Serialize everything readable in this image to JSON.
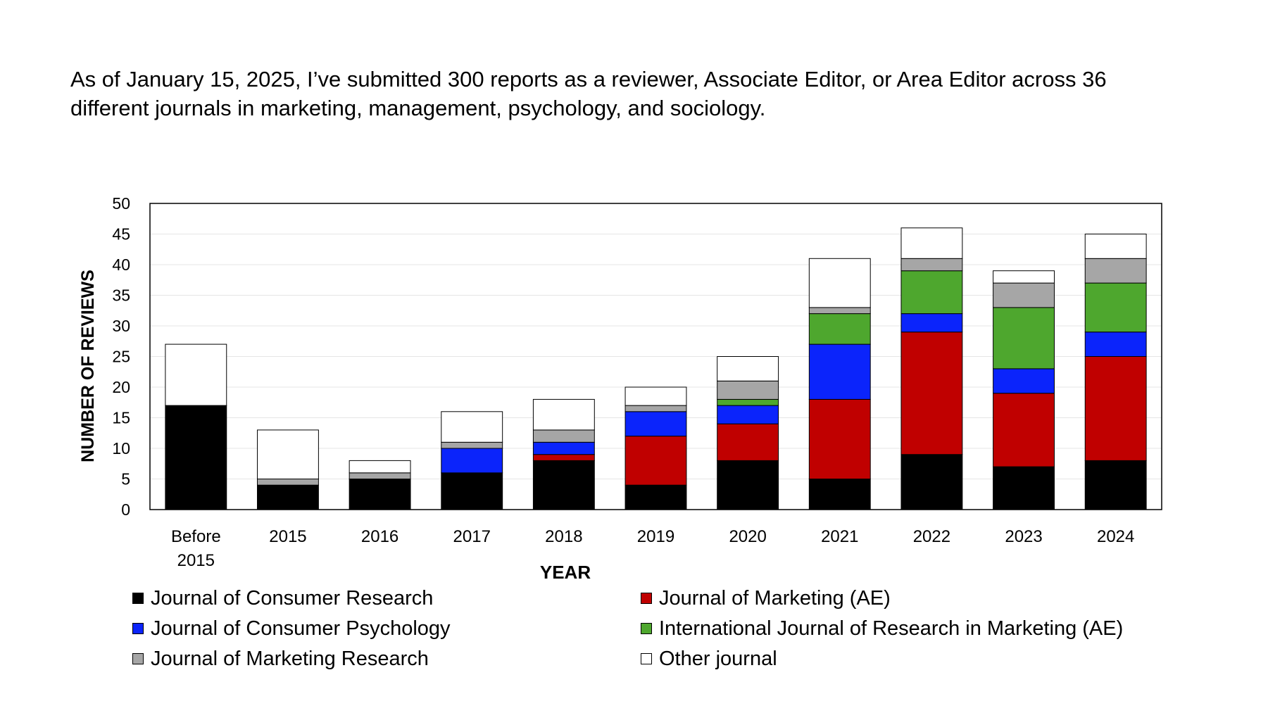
{
  "intro_text": "As of January 15, 2025, I’ve submitted 300 reports as a reviewer, Associate Editor, or Area Editor across 36 different journals in marketing, management, psychology, and sociology.",
  "colors": {
    "Journal of Consumer Research": "#000000",
    "Journal of Marketing (AE)": "#c00000",
    "Journal of Consumer Psychology": "#0b24fb",
    "International Journal of Research in Marketing (AE)": "#4ea72e",
    "Journal of Marketing Research": "#a6a6a6",
    "Other journal": "#ffffff"
  },
  "chart_data": {
    "type": "bar",
    "stacked": true,
    "xlabel": "YEAR",
    "ylabel": "NUMBER OF REVIEWS",
    "ylim": [
      0,
      50
    ],
    "yticks": [
      0,
      5,
      10,
      15,
      20,
      25,
      30,
      35,
      40,
      45,
      50
    ],
    "grid": true,
    "legend_position": "bottom",
    "categories": [
      "Before 2015",
      "2015",
      "2016",
      "2017",
      "2018",
      "2019",
      "2020",
      "2021",
      "2022",
      "2023",
      "2024"
    ],
    "series": [
      {
        "name": "Journal of Consumer Research",
        "values": [
          17,
          4,
          5,
          6,
          8,
          4,
          8,
          5,
          9,
          7,
          8
        ]
      },
      {
        "name": "Journal of Marketing (AE)",
        "values": [
          0,
          0,
          0,
          0,
          1,
          8,
          6,
          13,
          20,
          12,
          17
        ]
      },
      {
        "name": "Journal of Consumer Psychology",
        "values": [
          0,
          0,
          0,
          4,
          2,
          4,
          3,
          9,
          3,
          4,
          4
        ]
      },
      {
        "name": "International Journal of Research in Marketing (AE)",
        "values": [
          0,
          0,
          0,
          0,
          0,
          0,
          1,
          5,
          7,
          10,
          8
        ]
      },
      {
        "name": "Journal of Marketing Research",
        "values": [
          0,
          1,
          1,
          1,
          2,
          1,
          3,
          1,
          2,
          4,
          4
        ]
      },
      {
        "name": "Other journal",
        "values": [
          10,
          8,
          2,
          5,
          5,
          3,
          4,
          8,
          5,
          2,
          4
        ]
      }
    ]
  }
}
